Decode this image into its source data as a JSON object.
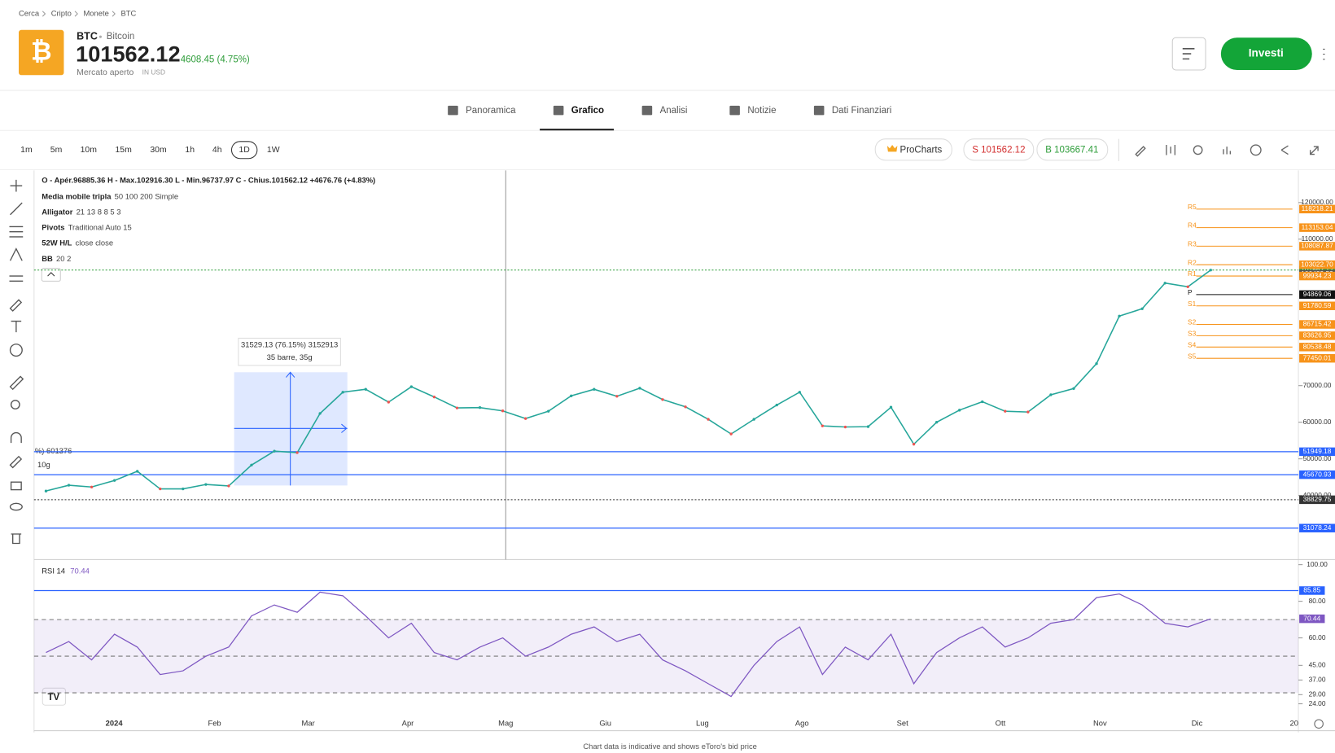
{
  "breadcrumb": [
    "Cerca",
    "Cripto",
    "Monete",
    "BTC"
  ],
  "header": {
    "symbol": "BTC",
    "name": "Bitcoin",
    "price": "101562.12",
    "change": "4608.45 (4.75%)",
    "status": "Mercato aperto",
    "currency": "IN USD",
    "button": "Investi"
  },
  "tabs": [
    "Panoramica",
    "Grafico",
    "Analisi",
    "Notizie",
    "Dati Finanziari"
  ],
  "timeframes": [
    "1m",
    "5m",
    "10m",
    "15m",
    "30m",
    "1h",
    "4h",
    "1D",
    "1W"
  ],
  "toolbar": {
    "procharts": "ProCharts",
    "sell": "S 101562.12",
    "buy": "B 103667.41"
  },
  "legend": {
    "ohlc": "O - Apér.96885.36  H - Max.102916.30  L - Min.96737.97  C - Chius.101562.12  +4676.76 (+4.83%)",
    "studies": [
      {
        "name": "Media mobile tripla",
        "params": "50 100 200 Simple"
      },
      {
        "name": "Alligator",
        "params": "21 13 8 8 5 3"
      },
      {
        "name": "Pivots",
        "params": "Traditional Auto 15"
      },
      {
        "name": "52W H/L",
        "params": "close close"
      },
      {
        "name": "BB",
        "params": "20 2"
      }
    ]
  },
  "annotations": {
    "measure": "31529.13 (76.15%) 3152913",
    "bars": "35 barre, 35g",
    "left_1": "%) 601376",
    "left_2": "10g"
  },
  "chart_data": {
    "type": "line",
    "color": "#26a69a",
    "values": [
      41200,
      42800,
      42300,
      44100,
      46600,
      41800,
      41800,
      43000,
      42600,
      48300,
      52100,
      51700,
      62400,
      68200,
      69000,
      65500,
      69700,
      66900,
      63900,
      64000,
      63100,
      61000,
      63000,
      67200,
      69000,
      67100,
      69300,
      66200,
      64200,
      60800,
      56800,
      60800,
      64700,
      68200,
      59000,
      58700,
      58800,
      64100,
      54000,
      60000,
      63300,
      65600,
      63000,
      62800,
      67500,
      69200,
      76000,
      89000,
      91000,
      98000,
      97000,
      101562.12
    ],
    "ylim": [
      22490,
      128770
    ],
    "yticks": [
      {
        "value": 120000,
        "label": "120000.00"
      },
      {
        "value": 110000,
        "label": "110000.00"
      },
      {
        "value": 70000,
        "label": "70000.00"
      },
      {
        "value": 60000,
        "label": "60000.00"
      },
      {
        "value": 50000,
        "label": "50000.00"
      },
      {
        "value": 40000,
        "label": "40000.00"
      }
    ],
    "pivots": [
      {
        "name": "R5",
        "value": 118218.21
      },
      {
        "name": "R4",
        "value": 113153.04
      },
      {
        "name": "R3",
        "value": 108087.87
      },
      {
        "name": "R2",
        "value": 103022.7,
        "label": "103022.70"
      },
      {
        "name": "R1",
        "value": 99934.23
      },
      {
        "name": "P",
        "value": 94869.06
      },
      {
        "name": "S1",
        "value": 91780.59
      },
      {
        "name": "S2",
        "value": 86715.42
      },
      {
        "name": "S3",
        "value": 83626.95
      },
      {
        "name": "S4",
        "value": 80538.48
      },
      {
        "name": "S5",
        "value": 77450.01
      }
    ],
    "levels": [
      {
        "value": 101562.12,
        "color": "#2e9d3a",
        "style": "dotted"
      },
      {
        "value": 100433.52,
        "color": "#555",
        "style": "none"
      },
      {
        "value": 51949.18,
        "color": "#2962ff",
        "style": "solid"
      },
      {
        "value": 45670.93,
        "color": "#2962ff",
        "style": "solid"
      },
      {
        "value": 38829.75,
        "color": "#333",
        "style": "dotted"
      },
      {
        "value": 31078.24,
        "color": "#2962ff",
        "style": "solid"
      }
    ],
    "x_labels": [
      "2024",
      "Feb",
      "Mar",
      "Apr",
      "Mag",
      "Giu",
      "Lug",
      "Ago",
      "Set",
      "Ott",
      "Nov",
      "Dic",
      "20"
    ],
    "rsi": {
      "title": "RSI 14",
      "value": 70.44,
      "color": "#7e57c2",
      "ylim": [
        20,
        100
      ],
      "yticks": [
        {
          "value": 100,
          "label": "100.00"
        },
        {
          "value": 80,
          "label": "80.00"
        },
        {
          "value": 60,
          "label": "60.00"
        },
        {
          "value": 45,
          "label": "45.00"
        },
        {
          "value": 37,
          "label": "37.00"
        },
        {
          "value": 29,
          "label": "29.00"
        },
        {
          "value": 24,
          "label": "24.00"
        }
      ],
      "bands": [
        70,
        50,
        30
      ],
      "high": 85.85,
      "values": [
        52,
        58,
        48,
        62,
        55,
        40,
        42,
        50,
        55,
        72,
        78,
        74,
        85,
        83,
        72,
        60,
        68,
        52,
        48,
        55,
        60,
        50,
        55,
        62,
        66,
        58,
        62,
        48,
        42,
        35,
        28,
        45,
        58,
        66,
        40,
        55,
        48,
        62,
        35,
        52,
        60,
        66,
        55,
        60,
        68,
        70,
        82,
        84,
        78,
        68,
        66,
        70.44
      ]
    }
  },
  "footer": "Chart data is indicative and shows eToro's bid price"
}
